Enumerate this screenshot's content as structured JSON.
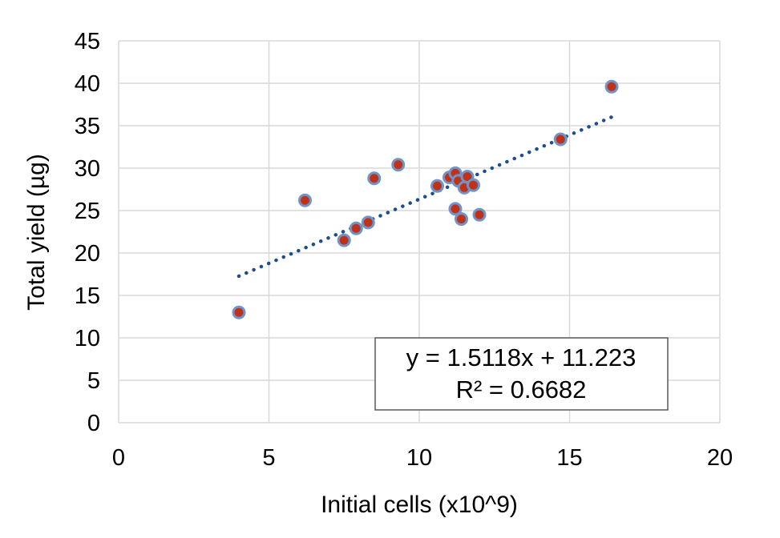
{
  "chart_data": {
    "type": "scatter",
    "xlabel": "Initial cells (x10^9)",
    "ylabel": "Total yield (µg)",
    "xlim": [
      0,
      20
    ],
    "ylim": [
      0,
      45
    ],
    "x_ticks": [
      "0",
      "5",
      "10",
      "15",
      "20"
    ],
    "y_ticks": [
      "0",
      "5",
      "10",
      "15",
      "20",
      "25",
      "30",
      "35",
      "40",
      "45"
    ],
    "grid": true,
    "series": [
      {
        "points": [
          {
            "x": 4.0,
            "y": 13.0
          },
          {
            "x": 6.2,
            "y": 26.2
          },
          {
            "x": 7.5,
            "y": 21.5
          },
          {
            "x": 7.9,
            "y": 22.9
          },
          {
            "x": 8.3,
            "y": 23.6
          },
          {
            "x": 8.5,
            "y": 28.8
          },
          {
            "x": 9.3,
            "y": 30.4
          },
          {
            "x": 10.6,
            "y": 27.9
          },
          {
            "x": 11.0,
            "y": 28.9
          },
          {
            "x": 11.2,
            "y": 29.4
          },
          {
            "x": 11.2,
            "y": 25.2
          },
          {
            "x": 11.3,
            "y": 28.5
          },
          {
            "x": 11.4,
            "y": 24.0
          },
          {
            "x": 11.5,
            "y": 27.7
          },
          {
            "x": 11.6,
            "y": 29.0
          },
          {
            "x": 11.8,
            "y": 28.0
          },
          {
            "x": 12.0,
            "y": 24.5
          },
          {
            "x": 14.7,
            "y": 33.4
          },
          {
            "x": 16.4,
            "y": 39.6
          }
        ]
      }
    ],
    "trendline": {
      "type": "linear",
      "slope": 1.5118,
      "intercept": 11.223,
      "x_range": [
        4.0,
        16.4
      ],
      "equation": "y = 1.5118x + 11.223",
      "r_squared": "R² = 0.6682"
    },
    "colors": {
      "marker_fill": "#c0311a",
      "marker_edge": "#6f94c8",
      "trendline": "#1f4e8c",
      "grid": "#d9d9d9",
      "axis": "#d9d9d9"
    }
  }
}
